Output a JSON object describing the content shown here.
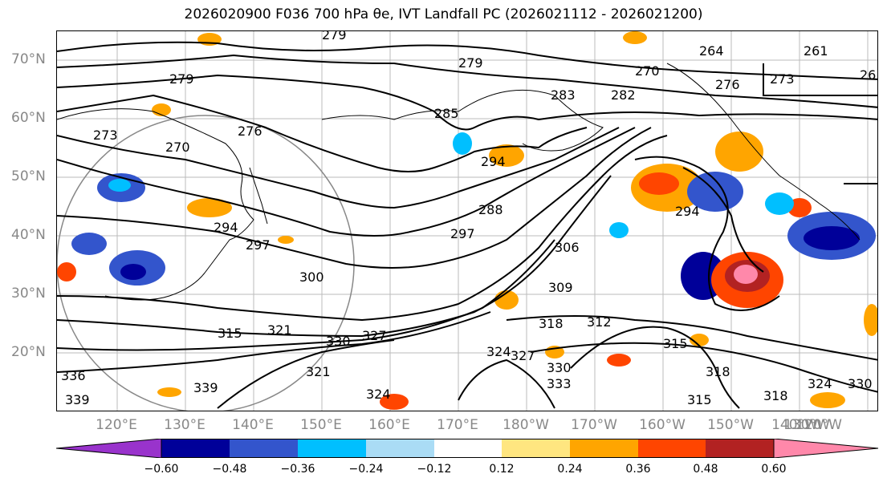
{
  "title": "2026020900 F036 700 hPa θe, IVT Landfall PC (2026021112 - 2026021200)",
  "lat_labels": [
    "70°N",
    "60°N",
    "50°N",
    "40°N",
    "30°N",
    "20°N"
  ],
  "lon_labels": [
    "120°E",
    "130°E",
    "140°E",
    "150°E",
    "160°E",
    "170°E",
    "180°W",
    "170°W",
    "160°W",
    "150°W",
    "140°W",
    "130°W",
    "120°W"
  ],
  "contour_labels": [
    "279",
    "279",
    "270",
    "264",
    "261",
    "276",
    "273",
    "26",
    "279",
    "283",
    "282",
    "285",
    "273",
    "276",
    "270",
    "294",
    "294",
    "297",
    "288",
    "297",
    "294",
    "306",
    "300",
    "309",
    "315",
    "321",
    "330",
    "327",
    "318",
    "312",
    "315",
    "318",
    "324",
    "327",
    "330",
    "333",
    "321",
    "324",
    "315",
    "318",
    "324",
    "330",
    "339",
    "336",
    "339"
  ],
  "colorbar": {
    "ticks": [
      "−0.60",
      "−0.48",
      "−0.36",
      "−0.24",
      "−0.12",
      "0.12",
      "0.24",
      "0.36",
      "0.48",
      "0.60"
    ],
    "colors": [
      "#9933cc",
      "#000099",
      "#3355cc",
      "#00bfff",
      "#aadcf5",
      "#ffffff",
      "#ffe680",
      "#ffa500",
      "#ff4500",
      "#b22222",
      "#ff88aa"
    ]
  }
}
